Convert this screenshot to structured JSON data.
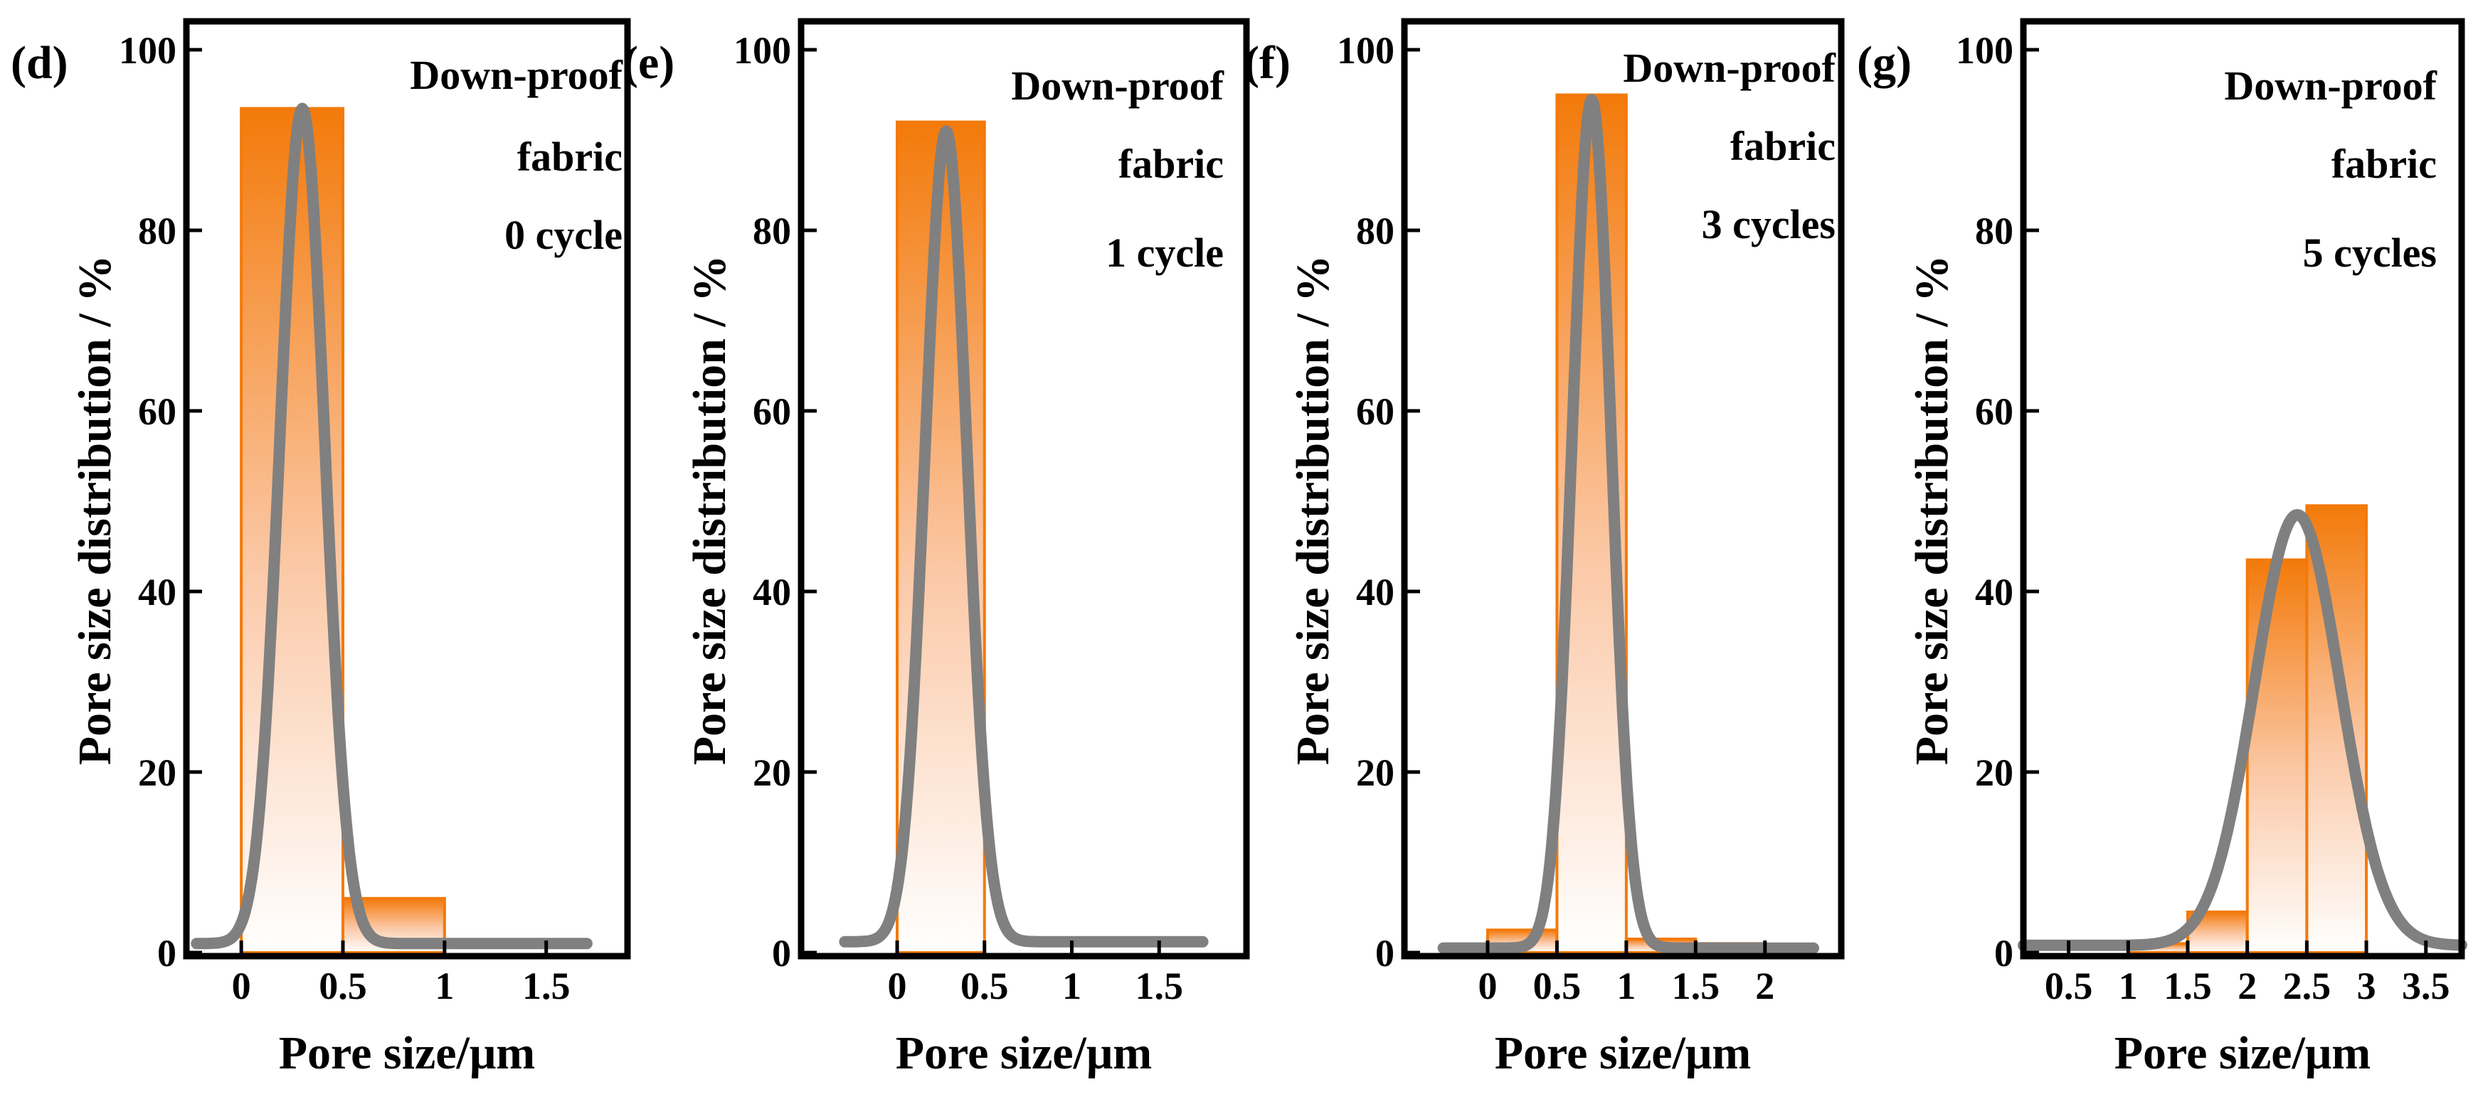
{
  "chart_data": [
    {
      "type": "bar",
      "panel_label": "(d)",
      "annotation": [
        "Down-proof",
        "fabric",
        "0 cycle"
      ],
      "xlabel": "Pore size/μm",
      "ylabel": "Pore size distribution / %",
      "xlim": [
        -0.27,
        1.9
      ],
      "ylim": [
        0,
        100
      ],
      "xticks": [
        0,
        0.5,
        1,
        1.5
      ],
      "xtick_labels": [
        "0",
        "0.5",
        "1",
        "1.5"
      ],
      "yticks": [
        0,
        20,
        40,
        60,
        80,
        100
      ],
      "ytick_labels": [
        "0",
        "20",
        "40",
        "60",
        "80",
        "100"
      ],
      "bars": [
        {
          "x0": 0,
          "x1": 0.5,
          "value": 93.5
        },
        {
          "x0": 0.5,
          "x1": 1,
          "value": 6
        }
      ],
      "fit": {
        "type": "gaussian",
        "center": 0.3,
        "sigma": 0.11,
        "peak": 93.5,
        "baseline": 1,
        "x_range": [
          -0.22,
          1.7
        ]
      }
    },
    {
      "type": "bar",
      "panel_label": "(e)",
      "annotation": [
        "Down-proof",
        "fabric",
        "1 cycle"
      ],
      "xlabel": "Pore size/μm",
      "ylabel": "Pore size distribution / %",
      "xlim": [
        -0.55,
        2.0
      ],
      "ylim": [
        0,
        100
      ],
      "xticks": [
        0,
        0.5,
        1,
        1.5
      ],
      "xtick_labels": [
        "0",
        "0.5",
        "1",
        "1.5"
      ],
      "yticks": [
        0,
        20,
        40,
        60,
        80,
        100
      ],
      "ytick_labels": [
        "0",
        "20",
        "40",
        "60",
        "80",
        "100"
      ],
      "bars": [
        {
          "x0": 0,
          "x1": 0.5,
          "value": 92
        }
      ],
      "fit": {
        "type": "gaussian",
        "center": 0.28,
        "sigma": 0.12,
        "peak": 91,
        "baseline": 1.2,
        "x_range": [
          -0.3,
          1.75
        ]
      }
    },
    {
      "type": "bar",
      "panel_label": "(f)",
      "annotation": [
        "Down-proof",
        "fabric",
        "3 cycles"
      ],
      "xlabel": "Pore size/μm",
      "ylabel": "Pore size distribution / %",
      "xlim": [
        -0.6,
        2.55
      ],
      "ylim": [
        0,
        100
      ],
      "xticks": [
        0,
        0.5,
        1,
        1.5,
        2
      ],
      "xtick_labels": [
        "0",
        "0.5",
        "1",
        "1.5",
        "2"
      ],
      "yticks": [
        0,
        20,
        40,
        60,
        80,
        100
      ],
      "ytick_labels": [
        "0",
        "20",
        "40",
        "60",
        "80",
        "100"
      ],
      "bars": [
        {
          "x0": 0,
          "x1": 0.5,
          "value": 2.5
        },
        {
          "x0": 0.5,
          "x1": 1,
          "value": 95
        },
        {
          "x0": 1,
          "x1": 1.5,
          "value": 1.5
        },
        {
          "x0": 1.5,
          "x1": 2,
          "value": 1
        }
      ],
      "fit": {
        "type": "gaussian",
        "center": 0.75,
        "sigma": 0.14,
        "peak": 94.5,
        "baseline": 0.5,
        "x_range": [
          -0.32,
          2.35
        ]
      }
    },
    {
      "type": "bar",
      "panel_label": "(g)",
      "annotation": [
        "Down-proof",
        "fabric",
        "5 cycles"
      ],
      "xlabel": "Pore size/μm",
      "ylabel": "Pore size distribution / %",
      "xlim": [
        0.12,
        3.8
      ],
      "ylim": [
        0,
        100
      ],
      "xticks": [
        0.5,
        1,
        1.5,
        2,
        2.5,
        3,
        3.5
      ],
      "xtick_labels": [
        "0.5",
        "1",
        "1.5",
        "2",
        "2.5",
        "3",
        "3.5"
      ],
      "yticks": [
        0,
        20,
        40,
        60,
        80,
        100
      ],
      "ytick_labels": [
        "0",
        "20",
        "40",
        "60",
        "80",
        "100"
      ],
      "bars": [
        {
          "x0": 1,
          "x1": 1.5,
          "value": 1
        },
        {
          "x0": 1.5,
          "x1": 2,
          "value": 4.5
        },
        {
          "x0": 2,
          "x1": 2.5,
          "value": 43.5
        },
        {
          "x0": 2.5,
          "x1": 3,
          "value": 49.5
        }
      ],
      "fit": {
        "type": "gaussian",
        "center": 2.42,
        "sigma": 0.36,
        "peak": 48.5,
        "baseline": 0.8,
        "x_range": [
          0.12,
          3.8
        ]
      }
    }
  ]
}
